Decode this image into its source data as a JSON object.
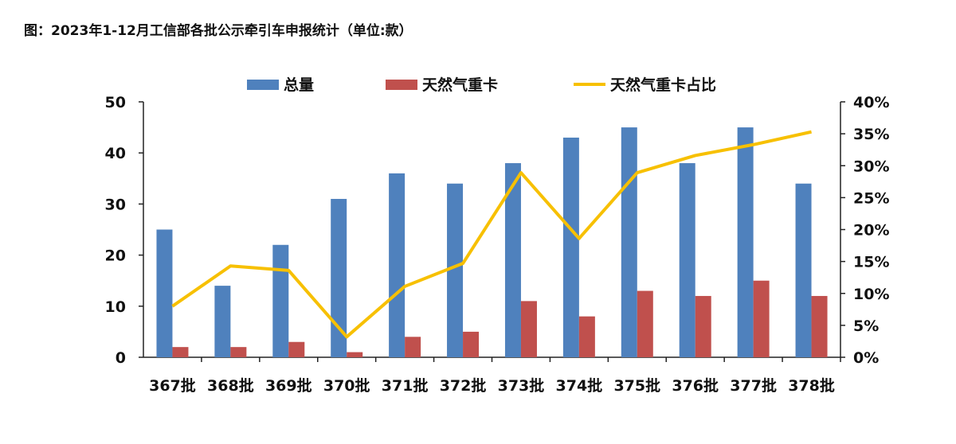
{
  "title": "图：2023年1-12月工信部各批公示牵引车申报统计（单位:款）",
  "chart_data": {
    "type": "bar",
    "categories": [
      "367批",
      "368批",
      "369批",
      "370批",
      "371批",
      "372批",
      "373批",
      "374批",
      "375批",
      "376批",
      "377批",
      "378批"
    ],
    "series": [
      {
        "name": "总量",
        "type": "bar",
        "axis": "left",
        "color": "#4f81bd",
        "values": [
          25,
          14,
          22,
          31,
          36,
          34,
          38,
          43,
          45,
          38,
          45,
          34
        ]
      },
      {
        "name": "天然气重卡",
        "type": "bar",
        "axis": "left",
        "color": "#c0504d",
        "values": [
          2,
          2,
          3,
          1,
          4,
          5,
          11,
          8,
          13,
          12,
          15,
          12
        ]
      },
      {
        "name": "天然气重卡占比",
        "type": "line",
        "axis": "right",
        "color": "#f7c000",
        "values": [
          0.08,
          0.143,
          0.136,
          0.032,
          0.111,
          0.147,
          0.289,
          0.186,
          0.289,
          0.316,
          0.333,
          0.353
        ]
      }
    ],
    "y_left": {
      "min": 0,
      "max": 50,
      "ticks": [
        "0",
        "10",
        "20",
        "30",
        "40",
        "50"
      ]
    },
    "y_right": {
      "min": 0,
      "max": 0.4,
      "ticks": [
        "0%",
        "5%",
        "10%",
        "15%",
        "20%",
        "25%",
        "30%",
        "35%",
        "40%"
      ]
    },
    "legend_position": "top",
    "grid": false
  }
}
